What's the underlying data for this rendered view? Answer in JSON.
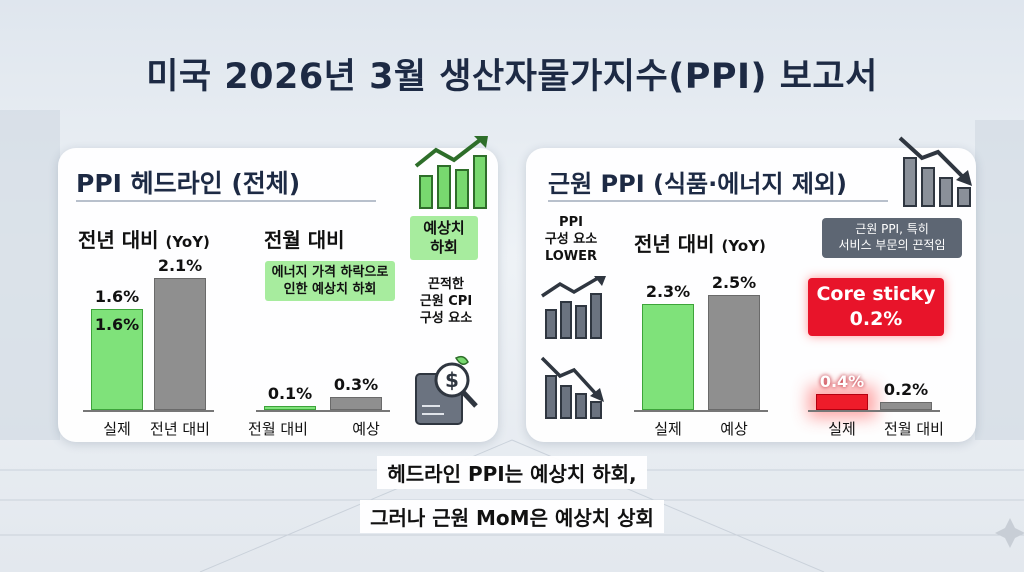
{
  "title": "미국 2026년 3월 생산자물가지수(PPI) 보고서",
  "headline_panel": {
    "title": "PPI 헤드라인 (전체)",
    "yoy": {
      "label": "전년 대비",
      "label_suffix": "(YoY)"
    },
    "mom": {
      "label": "전월 대비"
    },
    "tag_below_expectations": "예상치\n하회",
    "energy_note": "에너지 가격 하락으로\n인한 예상치 하회",
    "sticky_note": "끈적한\n근원 CPI\n구성 요소"
  },
  "core_panel": {
    "title": "근원 PPI (식품·에너지 제외)",
    "side_note": "PPI\n구성 요소\nLOWER",
    "yoy": {
      "label": "전년 대비",
      "label_suffix": "(YoY)"
    },
    "service_note": "근원 PPI, 특히\n서비스 부문의 끈적임",
    "core_sticky_tag": "Core sticky\n0.2%"
  },
  "conclusion": {
    "line1": "헤드라인 PPI는 예상치 하회,",
    "line2": "그러나 근원 MoM은 예상치 상회"
  },
  "colors": {
    "actual": "#7fe27a",
    "comparison": "#8f8f8f",
    "alert": "#e8142a",
    "title": "#1d2a44"
  },
  "icons": [
    "rising-bar-chart-icon",
    "falling-bar-chart-icon",
    "dollar-magnifier-document-icon"
  ],
  "chart_data": [
    {
      "type": "bar",
      "title": "전년 대비 (YoY)",
      "categories": [
        "실제",
        "전년 대비"
      ],
      "values": [
        1.6,
        2.1
      ],
      "value_labels": [
        "1.6%",
        "2.1%"
      ],
      "extra_label": "1.6%"
    },
    {
      "type": "bar",
      "title": "전월 대비",
      "categories": [
        "전월 대비",
        "예상"
      ],
      "values": [
        0.1,
        0.3
      ],
      "value_labels": [
        "0.1%",
        "0.3%"
      ]
    },
    {
      "type": "bar",
      "title": "전년 대비 (YoY)",
      "categories": [
        "실제",
        "예상"
      ],
      "values": [
        2.3,
        2.5
      ],
      "value_labels": [
        "2.3%",
        "2.5%"
      ]
    },
    {
      "type": "bar",
      "title": "",
      "categories": [
        "실제",
        "전월 대비"
      ],
      "values": [
        0.4,
        0.2
      ],
      "value_labels": [
        "0.4%",
        "0.2%"
      ]
    }
  ]
}
